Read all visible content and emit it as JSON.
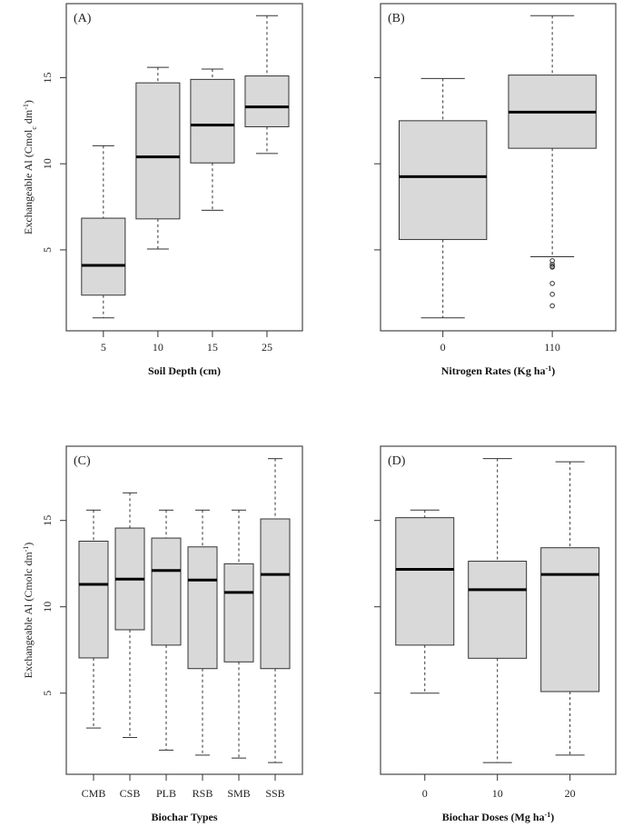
{
  "chart_data": [
    {
      "type": "box",
      "panel_label": "(A)",
      "xlabel": [
        {
          "t": "Soil Depth (cm)"
        }
      ],
      "ylabel": [
        {
          "t": "Exchangeable Al (Cmol"
        },
        {
          "t": "c",
          "sub": true
        },
        {
          "t": " dm"
        },
        {
          "t": "-1",
          "sup": true
        },
        {
          "t": ")"
        }
      ],
      "yticks": [
        5,
        10,
        15
      ],
      "ylim": [
        0.3,
        19.3
      ],
      "xlim": [
        0.32,
        4.65
      ],
      "categories": [
        "5",
        "10",
        "15",
        "25"
      ],
      "stats": [
        {
          "min": 1.05,
          "q1": 2.37,
          "median": 4.1,
          "q3": 6.84,
          "max": 11.05,
          "outliers": []
        },
        {
          "min": 5.05,
          "q1": 6.8,
          "median": 10.4,
          "q3": 14.7,
          "max": 15.6,
          "outliers": []
        },
        {
          "min": 7.3,
          "q1": 10.05,
          "median": 12.25,
          "q3": 14.9,
          "max": 15.5,
          "outliers": []
        },
        {
          "min": 10.6,
          "q1": 12.15,
          "median": 13.3,
          "q3": 15.1,
          "max": 18.6,
          "outliers": []
        }
      ]
    },
    {
      "type": "box",
      "panel_label": "(B)",
      "xlabel": [
        {
          "t": "Nitrogen Rates (Kg ha"
        },
        {
          "t": "-1",
          "sup": true
        },
        {
          "t": ")"
        }
      ],
      "ylabel": [],
      "yticks": [
        5,
        10,
        15
      ],
      "show_ytick_labels": false,
      "ylim": [
        0.3,
        19.3
      ],
      "xlim": [
        0.43,
        2.58
      ],
      "categories": [
        "0",
        "110"
      ],
      "stats": [
        {
          "min": 1.05,
          "q1": 5.6,
          "median": 9.25,
          "q3": 12.5,
          "max": 14.95,
          "outliers": []
        },
        {
          "min": 4.6,
          "q1": 10.9,
          "median": 13.0,
          "q3": 15.15,
          "max": 18.6,
          "outliers": [
            4.37,
            4.16,
            4.05,
            4.0,
            3.05,
            2.42,
            1.75
          ]
        }
      ]
    },
    {
      "type": "box",
      "panel_label": "(C)",
      "xlabel": [
        {
          "t": "Biochar Types"
        }
      ],
      "ylabel": [
        {
          "t": "Exchangeable Al (Cmolc dm"
        },
        {
          "t": "-1",
          "sup": true
        },
        {
          "t": ")"
        }
      ],
      "yticks": [
        5,
        10,
        15
      ],
      "ylim": [
        0.3,
        19.3
      ],
      "xlim": [
        0.25,
        6.75
      ],
      "categories": [
        "CMB",
        "CSB",
        "PLB",
        "RSB",
        "SMB",
        "SSB"
      ],
      "stats": [
        {
          "min": 2.98,
          "q1": 7.04,
          "median": 11.3,
          "q3": 13.8,
          "max": 15.6,
          "outliers": []
        },
        {
          "min": 2.43,
          "q1": 8.67,
          "median": 11.6,
          "q3": 14.56,
          "max": 16.6,
          "outliers": []
        },
        {
          "min": 1.7,
          "q1": 7.78,
          "median": 12.1,
          "q3": 13.98,
          "max": 15.6,
          "outliers": []
        },
        {
          "min": 1.41,
          "q1": 6.42,
          "median": 11.55,
          "q3": 13.47,
          "max": 15.6,
          "outliers": []
        },
        {
          "min": 1.24,
          "q1": 6.81,
          "median": 10.83,
          "q3": 12.49,
          "max": 15.6,
          "outliers": []
        },
        {
          "min": 0.98,
          "q1": 6.42,
          "median": 11.87,
          "q3": 15.09,
          "max": 18.58,
          "outliers": []
        }
      ]
    },
    {
      "type": "box",
      "panel_label": "(D)",
      "xlabel": [
        {
          "t": "Biochar Doses (Mg ha"
        },
        {
          "t": "-1",
          "sup": true
        },
        {
          "t": ")"
        }
      ],
      "ylabel": [],
      "yticks": [
        5,
        10,
        15
      ],
      "show_ytick_labels": false,
      "ylim": [
        0.3,
        19.3
      ],
      "xlim": [
        0.39,
        3.63
      ],
      "categories": [
        "0",
        "10",
        "20"
      ],
      "stats": [
        {
          "min": 5.0,
          "q1": 7.78,
          "median": 12.17,
          "q3": 15.16,
          "max": 15.6,
          "outliers": []
        },
        {
          "min": 0.98,
          "q1": 7.02,
          "median": 10.99,
          "q3": 12.64,
          "max": 18.58,
          "outliers": []
        },
        {
          "min": 1.41,
          "q1": 5.09,
          "median": 11.87,
          "q3": 13.42,
          "max": 18.4,
          "outliers": []
        }
      ]
    }
  ]
}
